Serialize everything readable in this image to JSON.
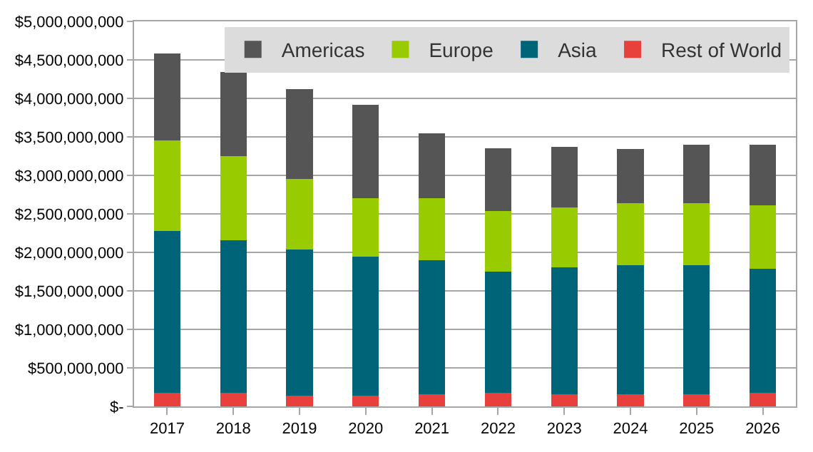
{
  "chart_data": {
    "type": "bar",
    "stacked": true,
    "categories": [
      "2017",
      "2018",
      "2019",
      "2020",
      "2021",
      "2022",
      "2023",
      "2024",
      "2025",
      "2026"
    ],
    "series": [
      {
        "name": "Rest of World",
        "color": "#e8403a",
        "values": [
          180000000,
          180000000,
          140000000,
          140000000,
          160000000,
          180000000,
          160000000,
          160000000,
          160000000,
          180000000
        ]
      },
      {
        "name": "Asia",
        "color": "#006478",
        "values": [
          2100000000,
          1980000000,
          1900000000,
          1800000000,
          1740000000,
          1570000000,
          1650000000,
          1670000000,
          1670000000,
          1610000000
        ]
      },
      {
        "name": "Europe",
        "color": "#99cc00",
        "values": [
          1170000000,
          1090000000,
          910000000,
          760000000,
          800000000,
          790000000,
          770000000,
          810000000,
          810000000,
          820000000
        ]
      },
      {
        "name": "Americas",
        "color": "#555555",
        "values": [
          1130000000,
          1090000000,
          1170000000,
          1220000000,
          850000000,
          810000000,
          790000000,
          700000000,
          760000000,
          790000000
        ]
      }
    ],
    "ylim": [
      0,
      5000000000
    ],
    "yticks": [
      {
        "value": 0,
        "label": "$-"
      },
      {
        "value": 500000000,
        "label": "$500,000,000"
      },
      {
        "value": 1000000000,
        "label": "$1,000,000,000"
      },
      {
        "value": 1500000000,
        "label": "$1,500,000,000"
      },
      {
        "value": 2000000000,
        "label": "$2,000,000,000"
      },
      {
        "value": 2500000000,
        "label": "$2,500,000,000"
      },
      {
        "value": 3000000000,
        "label": "$3,000,000,000"
      },
      {
        "value": 3500000000,
        "label": "$3,500,000,000"
      },
      {
        "value": 4000000000,
        "label": "$4,000,000,000"
      },
      {
        "value": 4500000000,
        "label": "$4,500,000,000"
      },
      {
        "value": 5000000000,
        "label": "$5,000,000,000"
      }
    ],
    "grid": "y",
    "legend": "top right"
  }
}
